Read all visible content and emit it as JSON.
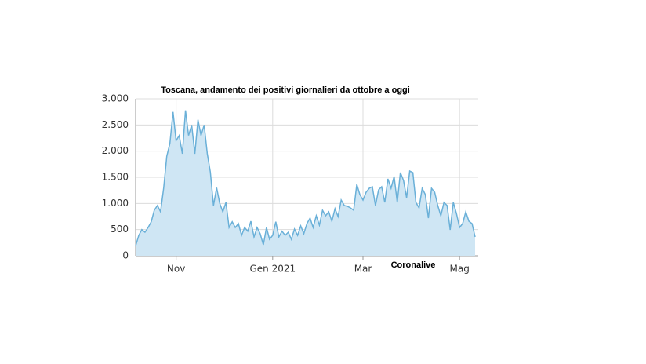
{
  "chart_data": {
    "type": "area",
    "title": "Toscana, andamento dei positivi giornalieri da ottobre a oggi",
    "annotation": "Coronalive",
    "categories": [
      null,
      null,
      null,
      null,
      null,
      null,
      null,
      null,
      null,
      null,
      null,
      null,
      null,
      "Nov",
      null,
      null,
      null,
      null,
      null,
      null,
      null,
      null,
      null,
      null,
      null,
      null,
      null,
      null,
      null,
      null,
      null,
      null,
      null,
      null,
      null,
      null,
      null,
      null,
      null,
      null,
      null,
      null,
      null,
      null,
      "Gen 2021",
      null,
      null,
      null,
      null,
      null,
      null,
      null,
      null,
      null,
      null,
      null,
      null,
      null,
      null,
      null,
      null,
      null,
      null,
      null,
      null,
      null,
      null,
      null,
      null,
      null,
      null,
      null,
      null,
      "Mar",
      null,
      null,
      null,
      null,
      null,
      null,
      null,
      null,
      null,
      null,
      null,
      null,
      null,
      null,
      null,
      null,
      null,
      null,
      null,
      null,
      null,
      null,
      null,
      null,
      null,
      null,
      null,
      null,
      null,
      null,
      "Mag",
      null,
      null,
      null,
      null,
      null
    ],
    "values": [
      190,
      390,
      500,
      450,
      540,
      650,
      870,
      960,
      840,
      1300,
      1900,
      2150,
      2750,
      2200,
      2300,
      1950,
      2780,
      2300,
      2500,
      1950,
      2600,
      2300,
      2500,
      1950,
      1600,
      960,
      1300,
      1000,
      840,
      1020,
      540,
      650,
      540,
      615,
      390,
      540,
      470,
      660,
      360,
      540,
      420,
      210,
      540,
      315,
      390,
      650,
      360,
      470,
      390,
      450,
      315,
      510,
      390,
      570,
      420,
      615,
      720,
      540,
      765,
      585,
      870,
      765,
      840,
      660,
      900,
      750,
      1065,
      960,
      945,
      915,
      870,
      1365,
      1170,
      1065,
      1215,
      1290,
      1320,
      960,
      1260,
      1320,
      1020,
      1470,
      1290,
      1515,
      1020,
      1590,
      1440,
      1110,
      1620,
      1590,
      1020,
      915,
      1290,
      1170,
      720,
      1290,
      1215,
      960,
      765,
      1020,
      960,
      495,
      1020,
      810,
      540,
      615,
      840,
      660,
      615,
      360
    ],
    "color": "#6ab0d8",
    "fill": "#cfe6f4",
    "ylim": [
      0,
      3000
    ],
    "yticks": [
      0,
      500,
      {
        "value": 1000,
        "label": "1.000"
      },
      {
        "value": 1500,
        "label": "1.500"
      },
      {
        "value": 2000,
        "label": "2.000"
      },
      {
        "value": 2500,
        "label": "2.500"
      },
      {
        "value": 3000,
        "label": "3.000"
      }
    ],
    "grid": true
  }
}
